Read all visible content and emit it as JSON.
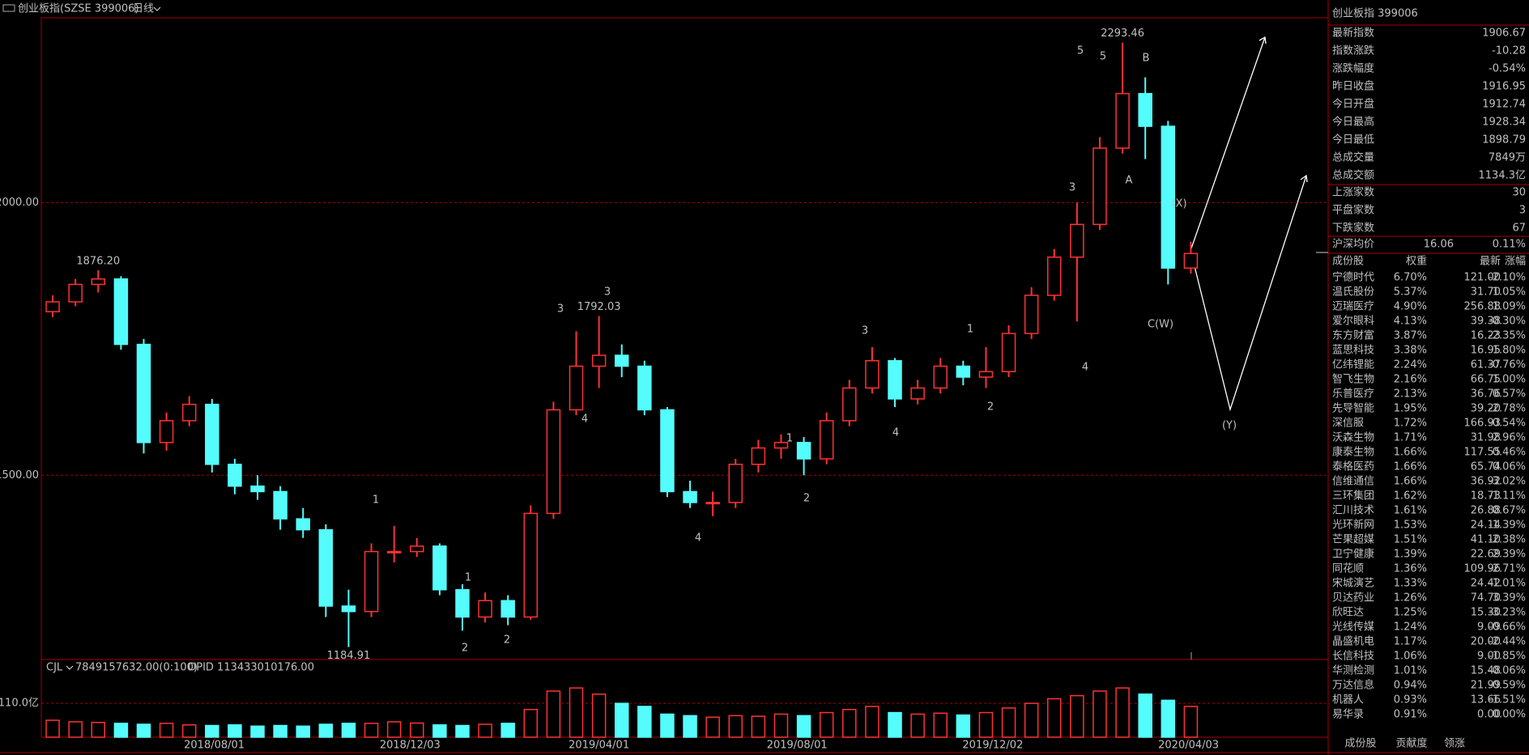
{
  "header": {
    "title": "创业板指(SZSE 399006)",
    "period": "日线"
  },
  "chart_data": [
    {
      "type": "candlestick",
      "xlim": [
        -0.5,
        55.5
      ],
      "xticks": [
        {
          "value": 7.1,
          "label": "2018/08/01"
        },
        {
          "value": 15.7,
          "label": "2018/12/03"
        },
        {
          "value": 24,
          "label": "2019/04/01"
        },
        {
          "value": 32.7,
          "label": "2019/08/01"
        },
        {
          "value": 41.3,
          "label": "2019/12/02"
        },
        {
          "value": 49.9,
          "label": "2020/04/03"
        }
      ],
      "ylim": [
        1162,
        2339
      ],
      "yticks": [
        {
          "value": 1500,
          "label": "1500.00"
        },
        {
          "value": 2000,
          "label": "2000.00"
        }
      ],
      "grid": true,
      "up_color": "#ff3232",
      "down_color": "#54fcfc",
      "ohlc": [
        [
          1800,
          1830,
          1790,
          1818
        ],
        [
          1818,
          1860,
          1810,
          1850
        ],
        [
          1850,
          1876.2,
          1835,
          1860
        ],
        [
          1860,
          1865,
          1730,
          1740
        ],
        [
          1740,
          1750,
          1540,
          1560
        ],
        [
          1560,
          1615,
          1545,
          1600
        ],
        [
          1600,
          1645,
          1590,
          1630
        ],
        [
          1630,
          1640,
          1505,
          1520
        ],
        [
          1520,
          1530,
          1465,
          1480
        ],
        [
          1480,
          1500,
          1455,
          1470
        ],
        [
          1470,
          1480,
          1400,
          1420
        ],
        [
          1420,
          1440,
          1385,
          1400
        ],
        [
          1400,
          1410,
          1240,
          1260
        ],
        [
          1260,
          1290,
          1184.91,
          1250
        ],
        [
          1250,
          1375,
          1240,
          1360
        ],
        [
          1360,
          1407,
          1340,
          1360
        ],
        [
          1360,
          1385,
          1350,
          1370
        ],
        [
          1370,
          1375,
          1280,
          1290
        ],
        [
          1290,
          1300,
          1215,
          1240
        ],
        [
          1240,
          1285,
          1230,
          1270
        ],
        [
          1270,
          1280,
          1225,
          1240
        ],
        [
          1240,
          1445,
          1235,
          1430
        ],
        [
          1430,
          1635,
          1420,
          1620
        ],
        [
          1620,
          1764,
          1610,
          1700
        ],
        [
          1700,
          1792.03,
          1660,
          1720
        ],
        [
          1720,
          1740,
          1680,
          1700
        ],
        [
          1700,
          1710,
          1610,
          1620
        ],
        [
          1620,
          1625,
          1460,
          1470
        ],
        [
          1470,
          1490,
          1440,
          1450
        ],
        [
          1450,
          1470,
          1425,
          1450
        ],
        [
          1450,
          1530,
          1440,
          1520
        ],
        [
          1520,
          1565,
          1505,
          1550
        ],
        [
          1550,
          1575,
          1530,
          1560
        ],
        [
          1560,
          1570,
          1500,
          1530
        ],
        [
          1530,
          1615,
          1520,
          1600
        ],
        [
          1600,
          1675,
          1590,
          1660
        ],
        [
          1660,
          1735,
          1650,
          1710
        ],
        [
          1710,
          1715,
          1625,
          1640
        ],
        [
          1640,
          1675,
          1630,
          1660
        ],
        [
          1660,
          1715,
          1650,
          1700
        ],
        [
          1700,
          1710,
          1665,
          1680
        ],
        [
          1680,
          1735,
          1660,
          1690
        ],
        [
          1690,
          1775,
          1680,
          1760
        ],
        [
          1760,
          1845,
          1750,
          1830
        ],
        [
          1830,
          1915,
          1820,
          1900
        ],
        [
          1900,
          2000,
          1782,
          1960
        ],
        [
          1960,
          2120,
          1950,
          2100
        ],
        [
          2100,
          2293.46,
          2090,
          2200
        ],
        [
          2200,
          2230,
          2080,
          2140
        ],
        [
          2140,
          2150,
          1850,
          1880
        ],
        [
          1880,
          1928.34,
          1870,
          1906.67
        ]
      ],
      "price_labels": [
        {
          "value": 1876.2,
          "label": "1876.20",
          "color": "#ff3232"
        },
        {
          "value": 1184.91,
          "label": "1184.91",
          "color": "#54fcfc"
        },
        {
          "value": 1792.03,
          "label": "1792.03",
          "color": "#ff3232"
        },
        {
          "value": 2293.46,
          "label": "2293.46",
          "color": "#ff3232"
        }
      ],
      "annotations": [
        {
          "text": "1",
          "color": "#ffff00"
        },
        {
          "text": "2",
          "color": "#ffff00"
        },
        {
          "text": "1",
          "color": "#22dd22"
        },
        {
          "text": "2",
          "color": "#22dd22"
        },
        {
          "text": "3",
          "color": "#22dd22"
        },
        {
          "text": "4",
          "color": "#22dd22"
        },
        {
          "text": "3",
          "color": "#ffff00"
        },
        {
          "text": "4",
          "color": "#ffff00"
        },
        {
          "text": "1",
          "color": "#22dd22"
        },
        {
          "text": "2",
          "color": "#22dd22"
        },
        {
          "text": "3",
          "color": "#22dd22"
        },
        {
          "text": "4",
          "color": "#22dd22"
        },
        {
          "text": "1",
          "color": "#ff00ff"
        },
        {
          "text": "2",
          "color": "#ff00ff"
        },
        {
          "text": "3",
          "color": "#ff00ff"
        },
        {
          "text": "4",
          "color": "#ff00ff"
        },
        {
          "text": "5",
          "color": "#ffff00"
        },
        {
          "text": "5",
          "color": "#22dd22"
        },
        {
          "text": "B",
          "color": "#ffff00"
        },
        {
          "text": "A",
          "color": "#ffff00"
        },
        {
          "text": "(X)",
          "color": "#ffff00"
        },
        {
          "text": "C(W)",
          "color": "#ffff00"
        },
        {
          "text": "(Y)",
          "color": "#ffff00"
        }
      ]
    },
    {
      "type": "bar",
      "indicator": "CJL",
      "indicator_value": "7849157632.00(0:100)",
      "opid": "OPID 113433010176.00",
      "ylim": [
        0,
        242
      ],
      "yticks": [
        {
          "value": 110,
          "label": "110.0亿"
        }
      ],
      "grid": true,
      "values": [
        55,
        50,
        48,
        45,
        42,
        45,
        40,
        38,
        40,
        36,
        38,
        36,
        42,
        45,
        45,
        50,
        46,
        40,
        38,
        42,
        45,
        90,
        150,
        160,
        140,
        110,
        100,
        75,
        70,
        65,
        70,
        68,
        75,
        70,
        80,
        90,
        100,
        80,
        75,
        78,
        72,
        80,
        95,
        110,
        125,
        135,
        150,
        160,
        140,
        120,
        100
      ]
    }
  ],
  "quote_panel": {
    "title": "创业板指 399006",
    "rows": [
      {
        "label": "最新指数",
        "value": "1906.67",
        "color": "#00e600"
      },
      {
        "label": "指数涨跌",
        "value": "-10.28",
        "color": "#00e600"
      },
      {
        "label": "涨跌幅度",
        "value": "-0.54%",
        "color": "#00e600"
      },
      {
        "label": "昨日收盘",
        "value": "1916.95",
        "color": "#ffffff"
      },
      {
        "label": "今日开盘",
        "value": "1912.74",
        "color": "#00e600"
      },
      {
        "label": "今日最高",
        "value": "1928.34",
        "color": "#ff3232"
      },
      {
        "label": "今日最低",
        "value": "1898.79",
        "color": "#00e600"
      },
      {
        "label": "总成交量",
        "value": "7849万",
        "color": "#00e600"
      },
      {
        "label": "总成交额",
        "value": "1134.3亿",
        "color": "#00e600"
      }
    ],
    "counts": [
      {
        "label": "上涨家数",
        "value": "30"
      },
      {
        "label": "平盘家数",
        "value": "3"
      },
      {
        "label": "下跌家数",
        "value": "67"
      }
    ],
    "avg": {
      "label": "沪深均价",
      "value": "16.06",
      "change": "0.11%",
      "color": "#ff3232"
    },
    "table": {
      "columns": [
        "成份股",
        "权重",
        "最新",
        "涨幅"
      ],
      "rows": [
        [
          "宁德时代",
          "6.70%",
          "121.00",
          "-2.10%",
          "#00e600"
        ],
        [
          "温氏股份",
          "5.37%",
          "31.70",
          "1.05%",
          "#ff3232"
        ],
        [
          "迈瑞医疗",
          "4.90%",
          "256.88",
          "1.09%",
          "#ff3232"
        ],
        [
          "爱尔眼科",
          "4.13%",
          "39.38",
          "-0.30%",
          "#00e600"
        ],
        [
          "东方财富",
          "3.87%",
          "16.23",
          "-2.35%",
          "#00e600"
        ],
        [
          "蓝思科技",
          "3.38%",
          "16.95",
          "1.80%",
          "#ff3232"
        ],
        [
          "亿纬锂能",
          "2.24%",
          "61.37",
          "-0.76%",
          "#00e600"
        ],
        [
          "智飞生物",
          "2.16%",
          "66.75",
          "1.00%",
          "#ff3232"
        ],
        [
          "乐普医疗",
          "2.13%",
          "36.76",
          "0.57%",
          "#ff3232"
        ],
        [
          "先导智能",
          "1.95%",
          "39.20",
          "-2.78%",
          "#00e600"
        ],
        [
          "深信服",
          "1.72%",
          "166.93",
          "-0.54%",
          "#00e600"
        ],
        [
          "沃森生物",
          "1.71%",
          "31.98",
          "2.96%",
          "#ff3232"
        ],
        [
          "康泰生物",
          "1.66%",
          "117.55",
          "0.46%",
          "#ff3232"
        ],
        [
          "泰格医药",
          "1.66%",
          "65.74",
          "0.06%",
          "#ff3232"
        ],
        [
          "信维通信",
          "1.66%",
          "36.92",
          "-3.02%",
          "#00e600"
        ],
        [
          "三环集团",
          "1.62%",
          "18.73",
          "-1.11%",
          "#00e600"
        ],
        [
          "汇川技术",
          "1.61%",
          "26.88",
          "0.67%",
          "#ff3232"
        ],
        [
          "光环新网",
          "1.53%",
          "24.14",
          "-1.39%",
          "#00e600"
        ],
        [
          "芒果超媒",
          "1.51%",
          "41.10",
          "-2.38%",
          "#00e600"
        ],
        [
          "卫宁健康",
          "1.39%",
          "22.69",
          "2.39%",
          "#ff3232"
        ],
        [
          "同花顺",
          "1.36%",
          "109.96",
          "-2.71%",
          "#00e600"
        ],
        [
          "宋城演艺",
          "1.33%",
          "24.42",
          "-1.01%",
          "#00e600"
        ],
        [
          "贝达药业",
          "1.26%",
          "74.70",
          "3.39%",
          "#ff3232"
        ],
        [
          "欣旺达",
          "1.25%",
          "15.30",
          "-3.23%",
          "#00e600"
        ],
        [
          "光线传媒",
          "1.24%",
          "9.09",
          "-0.66%",
          "#00e600"
        ],
        [
          "晶盛机电",
          "1.17%",
          "20.00",
          "-2.44%",
          "#00e600"
        ],
        [
          "长信科技",
          "1.06%",
          "9.00",
          "-1.85%",
          "#00e600"
        ],
        [
          "华测检测",
          "1.01%",
          "15.48",
          "-0.06%",
          "#00e600"
        ],
        [
          "万达信息",
          "0.94%",
          "21.99",
          "-0.59%",
          "#00e600"
        ],
        [
          "机器人",
          "0.93%",
          "13.66",
          "-1.51%",
          "#00e600"
        ],
        [
          "易华录",
          "0.91%",
          "0.00",
          "0.00%",
          "#ffffff"
        ]
      ]
    },
    "tabs": [
      "成份股",
      "贡献度",
      "领涨"
    ]
  }
}
